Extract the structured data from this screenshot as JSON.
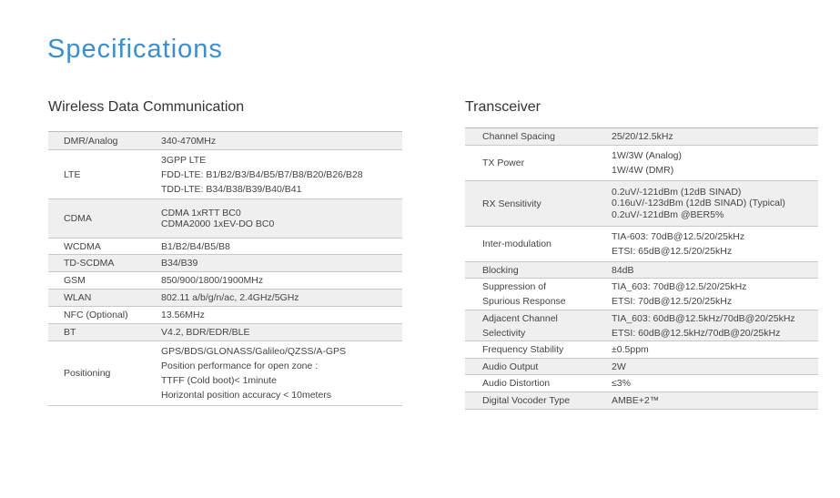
{
  "page_title": "Specifications",
  "wireless": {
    "heading": "Wireless Data Communication",
    "rows": [
      {
        "label": "DMR/Analog",
        "values": [
          "340-470MHz"
        ]
      },
      {
        "label": "LTE",
        "values": [
          "3GPP LTE",
          "FDD-LTE: B1/B2/B3/B4/B5/B7/B8/B20/B26/B28",
          "TDD-LTE: B34/B38/B39/B40/B41"
        ]
      },
      {
        "label": "CDMA",
        "values": [
          "CDMA 1xRTT BC0",
          "CDMA2000 1xEV-DO BC0"
        ]
      },
      {
        "label": "WCDMA",
        "values": [
          "B1/B2/B4/B5/B8"
        ]
      },
      {
        "label": "TD-SCDMA",
        "values": [
          "B34/B39"
        ]
      },
      {
        "label": "GSM",
        "values": [
          "850/900/1800/1900MHz"
        ]
      },
      {
        "label": "WLAN",
        "values": [
          "802.11 a/b/g/n/ac, 2.4GHz/5GHz"
        ]
      },
      {
        "label": "NFC (Optional)",
        "values": [
          "13.56MHz"
        ]
      },
      {
        "label": "BT",
        "values": [
          "V4.2, BDR/EDR/BLE"
        ]
      },
      {
        "label": "Positioning",
        "values": [
          "GPS/BDS/GLONASS/Galileo/QZSS/A-GPS",
          "Position performance for open zone :",
          "TTFF (Cold boot)< 1minute",
          "Horizontal position accuracy < 10meters"
        ]
      }
    ]
  },
  "transceiver": {
    "heading": "Transceiver",
    "rows": [
      {
        "label": "Channel Spacing",
        "values": [
          "25/20/12.5kHz"
        ]
      },
      {
        "label": "TX Power",
        "values": [
          "1W/3W (Analog)",
          "1W/4W (DMR)"
        ]
      },
      {
        "label": "RX Sensitivity",
        "values": [
          "0.2uV/-121dBm (12dB SINAD)",
          "0.16uV/-123dBm (12dB SINAD) (Typical)",
          "0.2uV/-121dBm @BER5%"
        ]
      },
      {
        "label": "Inter-modulation",
        "values": [
          "TIA-603: 70dB@12.5/20/25kHz",
          "ETSI: 65dB@12.5/20/25kHz"
        ]
      },
      {
        "label": "Blocking",
        "values": [
          "84dB"
        ]
      },
      {
        "label": "Suppression of Spurious Response",
        "values": [
          "TIA_603: 70dB@12.5/20/25kHz",
          "ETSI: 70dB@12.5/20/25kHz"
        ]
      },
      {
        "label": "Adjacent Channel Selectivity",
        "values": [
          "TIA_603: 60dB@12.5kHz/70dB@20/25kHz",
          "ETSI: 60dB@12.5kHz/70dB@20/25kHz"
        ]
      },
      {
        "label": "Frequency Stability",
        "values": [
          "±0.5ppm"
        ]
      },
      {
        "label": "Audio Output",
        "values": [
          "2W"
        ]
      },
      {
        "label": "Audio Distortion",
        "values": [
          "≤3%"
        ]
      },
      {
        "label": "Digital Vocoder Type",
        "values": [
          "AMBE+2™"
        ]
      }
    ]
  }
}
